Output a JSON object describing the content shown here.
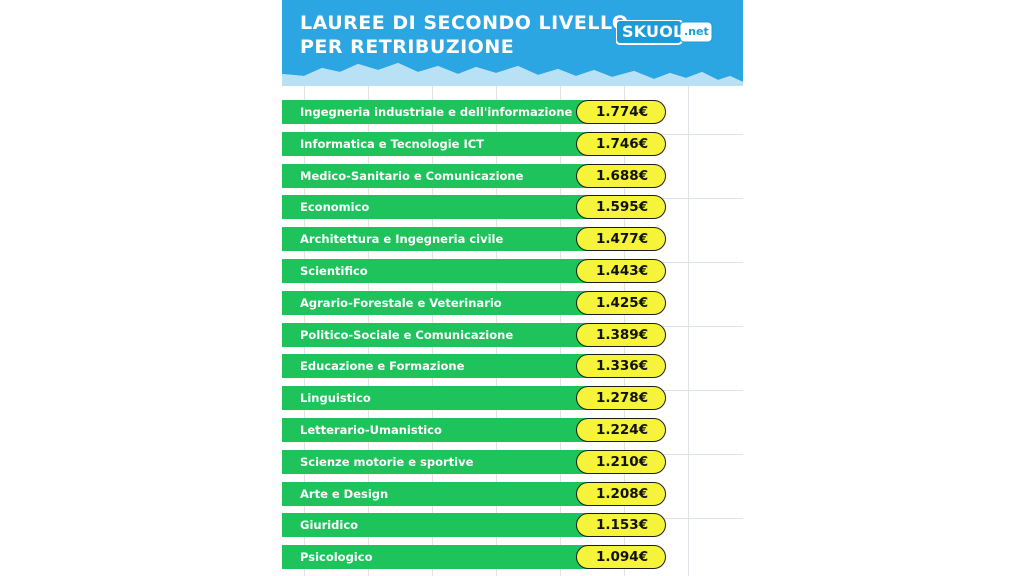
{
  "header": {
    "title_line1": "LAUREE DI SECONDO LIVELLO",
    "title_line2": "PER RETRIBUZIONE",
    "logo_main": "SKUOLa",
    "logo_tld": ".net"
  },
  "colors": {
    "header_blue": "#2ba6e3",
    "bar_green": "#1ec35c",
    "value_yellow": "#f5f43a",
    "grid": "#dfe3e8"
  },
  "chart_data": {
    "type": "bar",
    "title": "LAUREE DI SECONDO LIVELLO PER RETRIBUZIONE",
    "orientation": "horizontal",
    "grid": true,
    "categories": [
      "Ingegneria industriale e dell'informazione",
      "Informatica e Tecnologie ICT",
      "Medico-Sanitario e Comunicazione",
      "Economico",
      "Architettura e Ingegneria civile",
      "Scientifico",
      "Agrario-Forestale e Veterinario",
      "Politico-Sociale e Comunicazione",
      "Educazione e Formazione",
      "Linguistico",
      "Letterario-Umanistico",
      "Scienze motorie e sportive",
      "Arte e Design",
      "Giuridico",
      "Psicologico"
    ],
    "values": [
      1774,
      1746,
      1688,
      1595,
      1477,
      1443,
      1425,
      1389,
      1336,
      1278,
      1224,
      1210,
      1208,
      1153,
      1094
    ],
    "value_labels": [
      "1.774€",
      "1.746€",
      "1.688€",
      "1.595€",
      "1.477€",
      "1.443€",
      "1.425€",
      "1.389€",
      "1.336€",
      "1.278€",
      "1.224€",
      "1.210€",
      "1.208€",
      "1.153€",
      "1.094€"
    ]
  }
}
